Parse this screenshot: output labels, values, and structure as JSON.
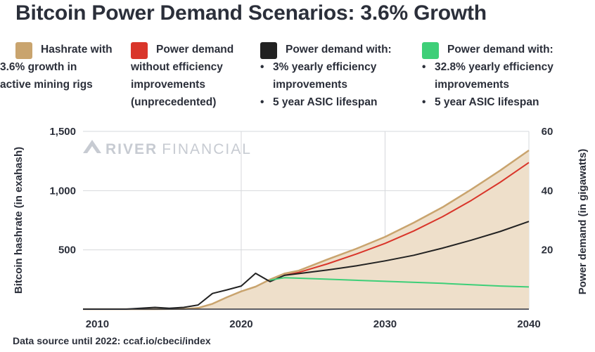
{
  "title": "Bitcoin Power Demand Scenarios: 3.6% Growth",
  "legend": [
    {
      "color": "#c9a46e",
      "lines": [
        "Hashrate with",
        "3.6% growth in",
        "active mining rigs"
      ],
      "bullets": []
    },
    {
      "color": "#d9352a",
      "lines": [
        "Power demand",
        "without efficiency",
        "improvements",
        "(unprecedented)"
      ],
      "bullets": []
    },
    {
      "color": "#222222",
      "lines": [
        "Power demand with:"
      ],
      "bullets": [
        [
          "3% yearly efficiency",
          "improvements"
        ],
        [
          "5 year ASIC lifespan"
        ]
      ]
    },
    {
      "color": "#3ecf78",
      "lines": [
        "Power demand with:"
      ],
      "bullets": [
        [
          "32.8% yearly efficiency",
          "improvements"
        ],
        [
          "5 year ASIC lifespan"
        ]
      ]
    }
  ],
  "watermark": {
    "bold": "RIVER",
    "light": "FINANCIAL",
    "logo": "river-logo-icon"
  },
  "source": "Data source until 2022: ccaf.io/cbeci/index",
  "chart_data": {
    "type": "area",
    "title": "Bitcoin Power Demand Scenarios: 3.6% Growth",
    "x_ticks": [
      "2010",
      "2020",
      "2030",
      "2040"
    ],
    "xlim": [
      2009,
      2040
    ],
    "y_left": {
      "label": "Bitcoin hashrate (in exahash)",
      "ticks": [
        "500",
        "1,000",
        "1,500"
      ],
      "lim": [
        0,
        1500
      ]
    },
    "y_right": {
      "label": "Power demand (in gigawatts)",
      "ticks": [
        "20",
        "40",
        "60"
      ],
      "lim": [
        0,
        60
      ]
    },
    "grid": {
      "vertical": [
        2020,
        2030,
        2040
      ],
      "horizontal": [
        500,
        1000,
        1500
      ]
    },
    "series": [
      {
        "name": "Hashrate with 3.6% growth in active mining rigs",
        "kind": "area",
        "axis": "left",
        "color": "#c9a46e",
        "fill": "#eedfca",
        "x": [
          2009,
          2012,
          2014,
          2016,
          2017,
          2018,
          2019,
          2020,
          2021,
          2022,
          2023,
          2024,
          2026,
          2028,
          2030,
          2032,
          2034,
          2036,
          2038,
          2040
        ],
        "y": [
          0,
          0,
          0,
          2,
          10,
          45,
          100,
          150,
          190,
          250,
          300,
          325,
          420,
          510,
          610,
          730,
          860,
          1010,
          1170,
          1340
        ]
      },
      {
        "name": "Power demand without efficiency improvements",
        "kind": "line",
        "axis": "right",
        "color": "#d9352a",
        "x": [
          2023,
          2024,
          2026,
          2028,
          2030,
          2032,
          2034,
          2036,
          2038,
          2040
        ],
        "y": [
          11.4,
          12.4,
          15.3,
          18.6,
          22.2,
          26.4,
          31.2,
          36.7,
          42.8,
          49.5
        ]
      },
      {
        "name": "Power demand with 3% yearly efficiency improvements",
        "kind": "line",
        "axis": "right",
        "color": "#222222",
        "x": [
          2009,
          2012,
          2013,
          2014,
          2015,
          2016,
          2017,
          2018,
          2019,
          2020,
          2021,
          2022,
          2023,
          2024,
          2026,
          2028,
          2030,
          2032,
          2034,
          2036,
          2038,
          2040
        ],
        "y": [
          0,
          0,
          0.3,
          0.6,
          0.3,
          0.6,
          1.4,
          5.3,
          6.5,
          7.8,
          12.1,
          9.3,
          11.4,
          12.0,
          13.2,
          14.6,
          16.3,
          18.2,
          20.6,
          23.3,
          26.2,
          29.6
        ]
      },
      {
        "name": "Power demand with 32.8% yearly efficiency improvements",
        "kind": "line",
        "axis": "right",
        "color": "#3ecf78",
        "x": [
          2022,
          2023,
          2026,
          2030,
          2034,
          2038,
          2040
        ],
        "y": [
          9.8,
          10.6,
          10.1,
          9.4,
          8.7,
          7.8,
          7.5
        ]
      }
    ]
  }
}
